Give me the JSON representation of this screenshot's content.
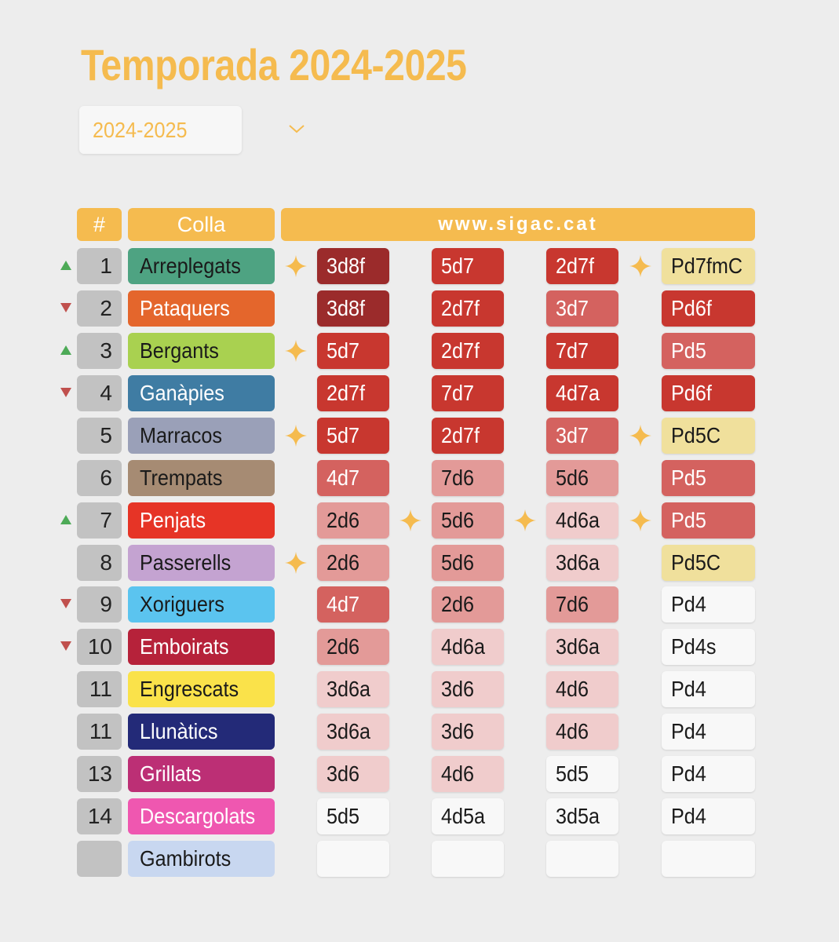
{
  "title": "Temporada 2024-2025",
  "season_selector": {
    "value": "2024-2025"
  },
  "header": {
    "rank": "#",
    "colla": "Colla",
    "site": "www.sigac.cat"
  },
  "colors": {
    "accent": "#f5bb4f",
    "up": "#4daa57",
    "down": "#c0504d",
    "cell": {
      "dark": "#9b2b2b",
      "red": "#c8372f",
      "mid": "#d4625f",
      "light": "#e39a98",
      "pale": "#f0cccc",
      "gold": "#f0e09c",
      "white": "#f8f8f8"
    }
  },
  "rows": [
    {
      "rank": "1",
      "trend": "up",
      "name": "Arreplegats",
      "bg": "#4ea382",
      "fg": "#1a1a1a",
      "cells": [
        {
          "v": "3d8f",
          "c": "dark",
          "star": true
        },
        {
          "v": "5d7",
          "c": "red"
        },
        {
          "v": "2d7f",
          "c": "red"
        },
        {
          "v": "Pd7fmC",
          "c": "gold",
          "star": true
        }
      ]
    },
    {
      "rank": "2",
      "trend": "down",
      "name": "Pataquers",
      "bg": "#e4662c",
      "fg": "#ffffff",
      "cells": [
        {
          "v": "3d8f",
          "c": "dark"
        },
        {
          "v": "2d7f",
          "c": "red"
        },
        {
          "v": "3d7",
          "c": "mid"
        },
        {
          "v": "Pd6f",
          "c": "red"
        }
      ]
    },
    {
      "rank": "3",
      "trend": "up",
      "name": "Bergants",
      "bg": "#a9d150",
      "fg": "#1a1a1a",
      "cells": [
        {
          "v": "5d7",
          "c": "red",
          "star": true
        },
        {
          "v": "2d7f",
          "c": "red"
        },
        {
          "v": "7d7",
          "c": "red"
        },
        {
          "v": "Pd5",
          "c": "mid"
        }
      ]
    },
    {
      "rank": "4",
      "trend": "down",
      "name": "Ganàpies",
      "bg": "#3f7ca3",
      "fg": "#ffffff",
      "cells": [
        {
          "v": "2d7f",
          "c": "red"
        },
        {
          "v": "7d7",
          "c": "red"
        },
        {
          "v": "4d7a",
          "c": "red"
        },
        {
          "v": "Pd6f",
          "c": "red"
        }
      ]
    },
    {
      "rank": "5",
      "trend": "",
      "name": "Marracos",
      "bg": "#9aa0b8",
      "fg": "#1a1a1a",
      "cells": [
        {
          "v": "5d7",
          "c": "red",
          "star": true
        },
        {
          "v": "2d7f",
          "c": "red"
        },
        {
          "v": "3d7",
          "c": "mid"
        },
        {
          "v": "Pd5C",
          "c": "gold",
          "star": true
        }
      ]
    },
    {
      "rank": "6",
      "trend": "",
      "name": "Trempats",
      "bg": "#a68b73",
      "fg": "#1a1a1a",
      "cells": [
        {
          "v": "4d7",
          "c": "mid"
        },
        {
          "v": "7d6",
          "c": "light"
        },
        {
          "v": "5d6",
          "c": "light"
        },
        {
          "v": "Pd5",
          "c": "mid"
        }
      ]
    },
    {
      "rank": "7",
      "trend": "up",
      "name": "Penjats",
      "bg": "#e63426",
      "fg": "#ffffff",
      "cells": [
        {
          "v": "2d6",
          "c": "light"
        },
        {
          "v": "5d6",
          "c": "light",
          "star": true
        },
        {
          "v": "4d6a",
          "c": "pale",
          "star": true
        },
        {
          "v": "Pd5",
          "c": "mid",
          "star": true
        }
      ]
    },
    {
      "rank": "8",
      "trend": "",
      "name": "Passerells",
      "bg": "#c4a3d1",
      "fg": "#1a1a1a",
      "cells": [
        {
          "v": "2d6",
          "c": "light",
          "star": true
        },
        {
          "v": "5d6",
          "c": "light"
        },
        {
          "v": "3d6a",
          "c": "pale"
        },
        {
          "v": "Pd5C",
          "c": "gold"
        }
      ]
    },
    {
      "rank": "9",
      "trend": "down",
      "name": "Xoriguers",
      "bg": "#5bc4ef",
      "fg": "#1a1a1a",
      "cells": [
        {
          "v": "4d7",
          "c": "mid"
        },
        {
          "v": "2d6",
          "c": "light"
        },
        {
          "v": "7d6",
          "c": "light"
        },
        {
          "v": "Pd4",
          "c": "white"
        }
      ]
    },
    {
      "rank": "10",
      "trend": "down",
      "name": "Emboirats",
      "bg": "#b6223a",
      "fg": "#ffffff",
      "cells": [
        {
          "v": "2d6",
          "c": "light"
        },
        {
          "v": "4d6a",
          "c": "pale"
        },
        {
          "v": "3d6a",
          "c": "pale"
        },
        {
          "v": "Pd4s",
          "c": "white"
        }
      ]
    },
    {
      "rank": "11",
      "trend": "",
      "name": "Engrescats",
      "bg": "#fae24a",
      "fg": "#1a1a1a",
      "cells": [
        {
          "v": "3d6a",
          "c": "pale"
        },
        {
          "v": "3d6",
          "c": "pale"
        },
        {
          "v": "4d6",
          "c": "pale"
        },
        {
          "v": "Pd4",
          "c": "white"
        }
      ]
    },
    {
      "rank": "11",
      "trend": "",
      "name": "Llunàtics",
      "bg": "#232a78",
      "fg": "#ffffff",
      "cells": [
        {
          "v": "3d6a",
          "c": "pale"
        },
        {
          "v": "3d6",
          "c": "pale"
        },
        {
          "v": "4d6",
          "c": "pale"
        },
        {
          "v": "Pd4",
          "c": "white"
        }
      ]
    },
    {
      "rank": "13",
      "trend": "",
      "name": "Grillats",
      "bg": "#bc2f75",
      "fg": "#ffffff",
      "cells": [
        {
          "v": "3d6",
          "c": "pale"
        },
        {
          "v": "4d6",
          "c": "pale"
        },
        {
          "v": "5d5",
          "c": "white"
        },
        {
          "v": "Pd4",
          "c": "white"
        }
      ]
    },
    {
      "rank": "14",
      "trend": "",
      "name": "Descargolats",
      "bg": "#ef57b0",
      "fg": "#ffffff",
      "cells": [
        {
          "v": "5d5",
          "c": "white"
        },
        {
          "v": "4d5a",
          "c": "white"
        },
        {
          "v": "3d5a",
          "c": "white"
        },
        {
          "v": "Pd4",
          "c": "white"
        }
      ]
    },
    {
      "rank": "",
      "trend": "",
      "name": "Gambirots",
      "bg": "#c8d7f0",
      "fg": "#1a1a1a",
      "cells": [
        {
          "v": "",
          "c": "white"
        },
        {
          "v": "",
          "c": "white"
        },
        {
          "v": "",
          "c": "white"
        },
        {
          "v": "",
          "c": "white"
        }
      ]
    }
  ]
}
